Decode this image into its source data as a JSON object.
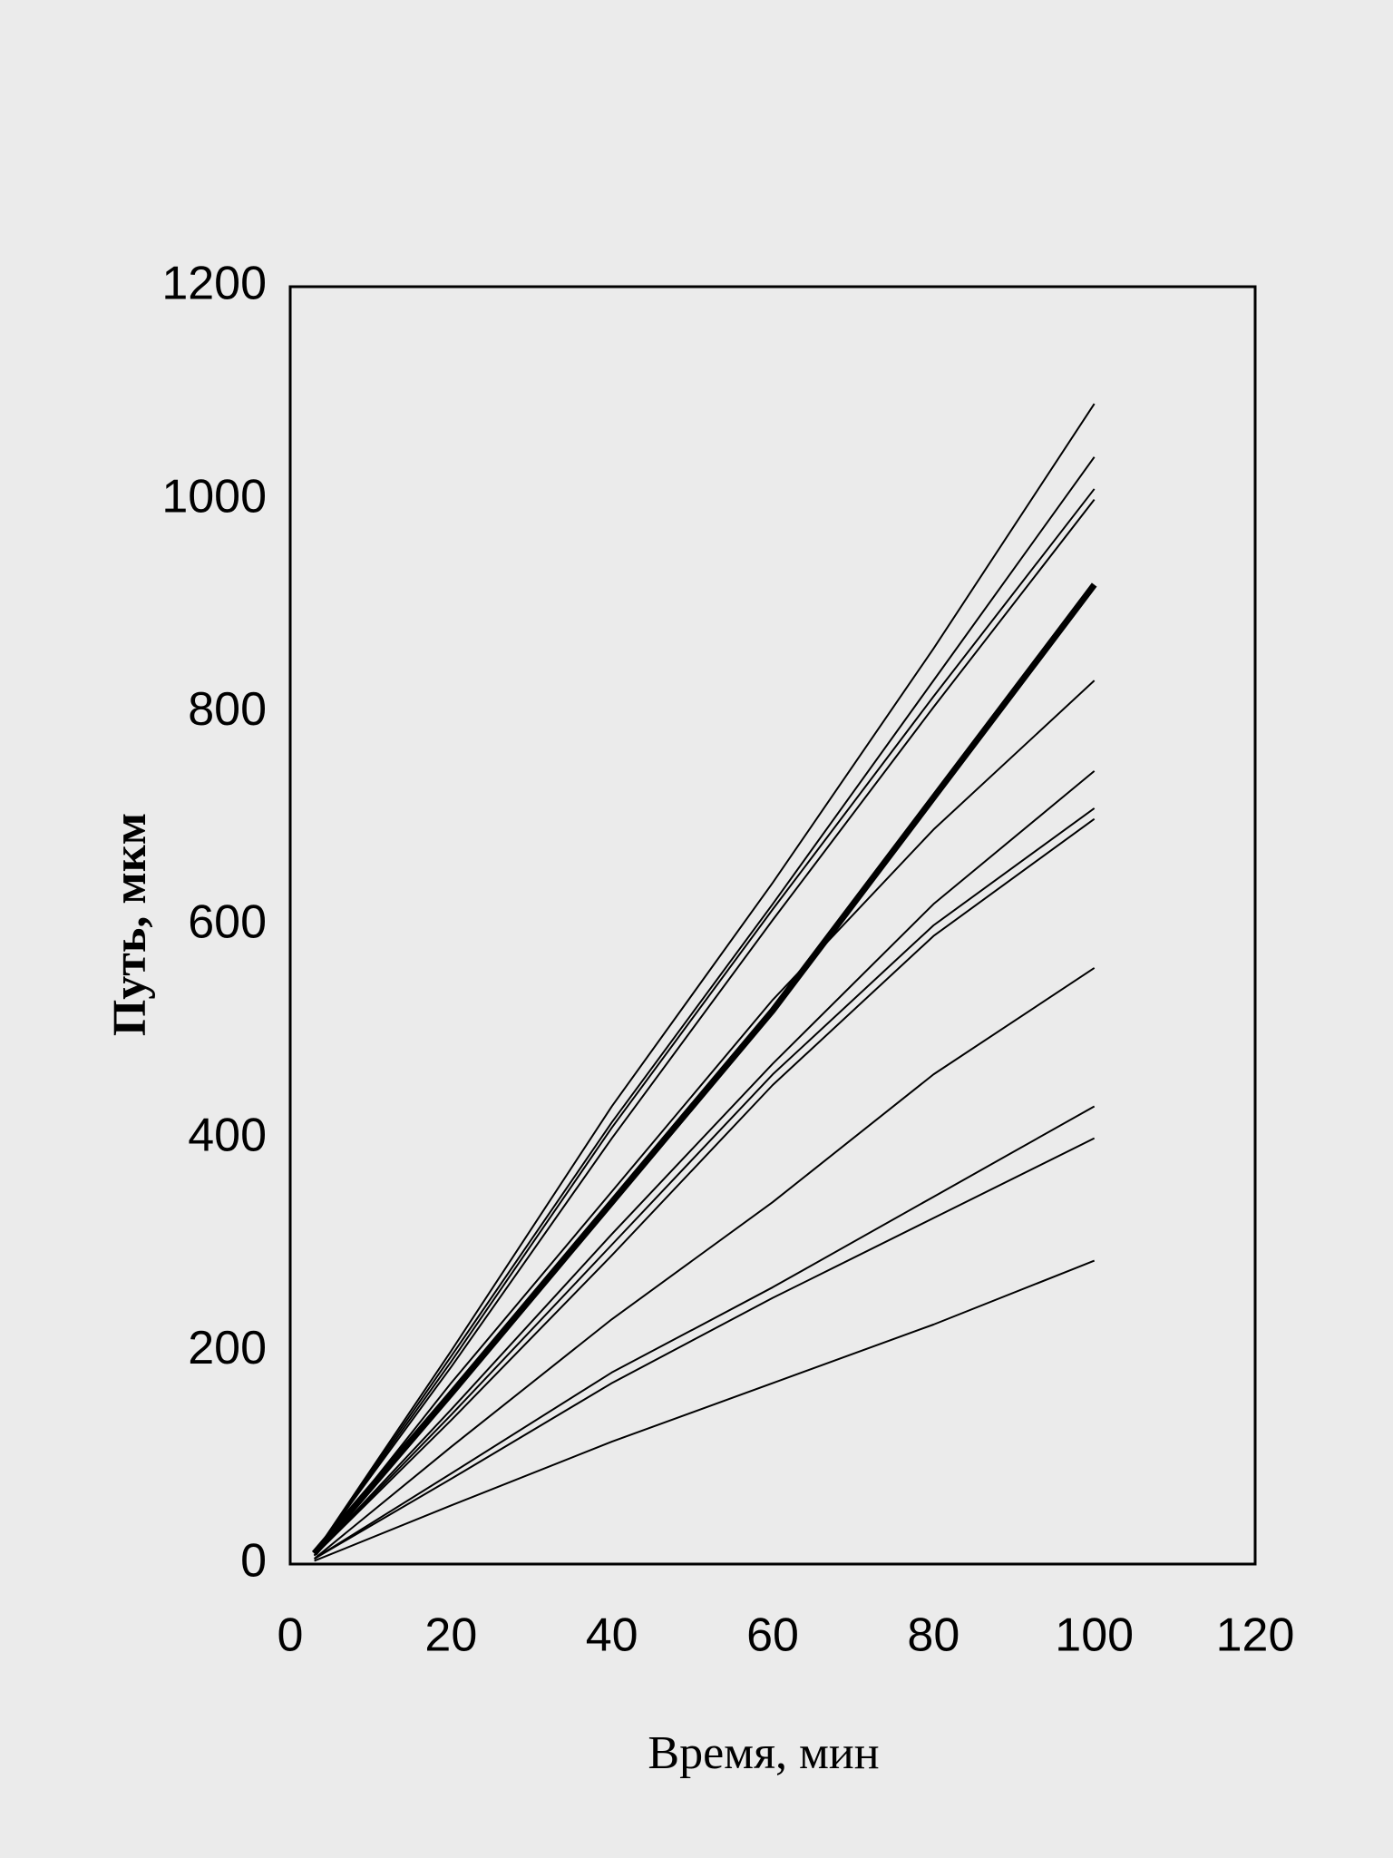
{
  "chart_data": {
    "type": "line",
    "x_label": "Время, мин",
    "y_label": "Путь, мкм",
    "x": [
      3,
      20,
      40,
      60,
      80,
      100
    ],
    "xlim": [
      0,
      120
    ],
    "xticks": [
      0,
      20,
      40,
      60,
      80,
      100,
      120
    ],
    "ylim": [
      0,
      1200
    ],
    "yticks": [
      0,
      200,
      400,
      600,
      800,
      1000,
      1200
    ],
    "series": [
      {
        "color": "#000000",
        "linewidth": 2,
        "values": [
          10,
          200,
          430,
          640,
          860,
          1090
        ]
      },
      {
        "color": "#000000",
        "linewidth": 2,
        "values": [
          10,
          195,
          415,
          620,
          830,
          1040
        ]
      },
      {
        "color": "#000000",
        "linewidth": 2,
        "values": [
          10,
          190,
          410,
          615,
          815,
          1010
        ]
      },
      {
        "color": "#000000",
        "linewidth": 2,
        "values": [
          10,
          185,
          400,
          605,
          805,
          1000
        ]
      },
      {
        "color": "#000000",
        "linewidth": 7,
        "values": [
          10,
          160,
          340,
          520,
          720,
          920
        ]
      },
      {
        "color": "#000000",
        "linewidth": 2,
        "values": [
          8,
          170,
          350,
          530,
          690,
          830
        ]
      },
      {
        "color": "#000000",
        "linewidth": 2,
        "values": [
          8,
          145,
          310,
          470,
          620,
          745
        ]
      },
      {
        "color": "#000000",
        "linewidth": 2,
        "values": [
          8,
          140,
          300,
          460,
          600,
          710
        ]
      },
      {
        "color": "#000000",
        "linewidth": 2,
        "values": [
          8,
          135,
          290,
          450,
          590,
          700
        ]
      },
      {
        "color": "#000000",
        "linewidth": 2,
        "values": [
          5,
          110,
          230,
          340,
          460,
          560
        ]
      },
      {
        "color": "#000000",
        "linewidth": 2,
        "values": [
          5,
          85,
          180,
          260,
          345,
          430
        ]
      },
      {
        "color": "#000000",
        "linewidth": 2,
        "values": [
          5,
          80,
          170,
          250,
          325,
          400
        ]
      },
      {
        "color": "#000000",
        "linewidth": 2,
        "values": [
          3,
          55,
          115,
          170,
          225,
          285
        ]
      }
    ]
  }
}
